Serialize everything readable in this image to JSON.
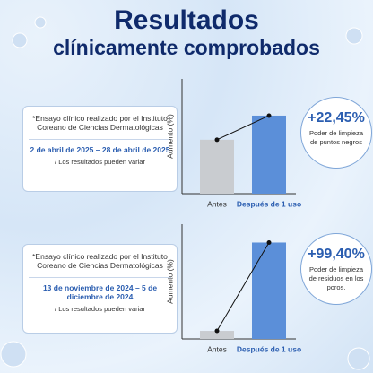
{
  "header": {
    "title": "Resultados",
    "subtitle": "clínicamente comprobados"
  },
  "panels": [
    {
      "note": "*Ensayo clínico realizado por el Instituto Coreano de Ciencias Dermatológicas",
      "dates": "2 de abril de 2025 – 28 de abril de 2025",
      "disclaimer": "/ Los resultados pueden variar",
      "highlight": "+22,45%",
      "claim": "Poder de limpieza de puntos negros"
    },
    {
      "note": "*Ensayo clínico realizado por el Instituto Coreano de Ciencias Dermatológicas",
      "dates": "13 de noviembre de 2024 – 5 de diciembre de 2024",
      "disclaimer": "/ Los resultados pueden variar",
      "highlight": "+99,40%",
      "claim": "Poder de limpieza de residuos en los poros."
    }
  ],
  "chart_data": [
    {
      "type": "bar",
      "ylabel": "Aumento (%)",
      "categories": [
        "Antes",
        "Después de 1 uso"
      ],
      "values": [
        47,
        68
      ],
      "colors": [
        "#c9ccd0",
        "#5b8fd9"
      ],
      "ylim": [
        0,
        100
      ]
    },
    {
      "type": "bar",
      "ylabel": "Aumento (%)",
      "categories": [
        "Antes",
        "Después de 1 uso"
      ],
      "values": [
        7,
        84
      ],
      "colors": [
        "#c9ccd0",
        "#5b8fd9"
      ],
      "ylim": [
        0,
        100
      ]
    }
  ]
}
